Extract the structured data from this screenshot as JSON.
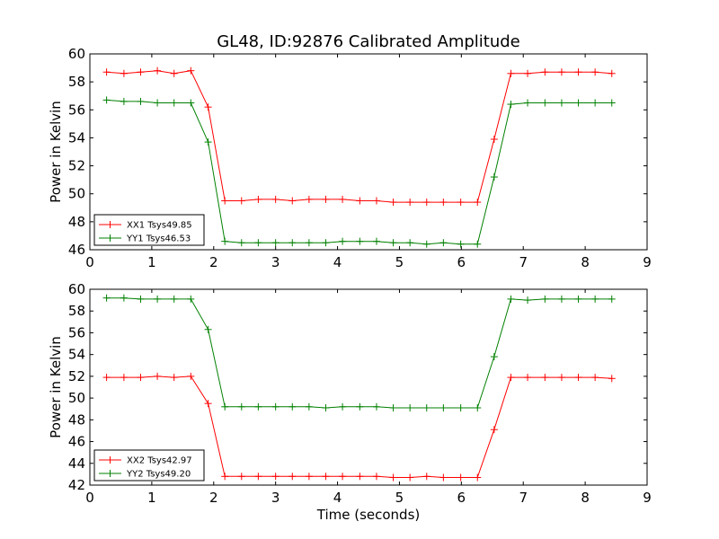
{
  "chart_data": [
    {
      "type": "line",
      "title": "GL48, ID:92876 Calibrated Amplitude",
      "xlabel": "",
      "ylabel": "Power in Kelvin",
      "xlim": [
        0,
        9
      ],
      "ylim": [
        46,
        60
      ],
      "xticks": [
        0,
        1,
        2,
        3,
        4,
        5,
        6,
        7,
        8,
        9
      ],
      "yticks": [
        46,
        48,
        50,
        52,
        54,
        56,
        58,
        60
      ],
      "grid": false,
      "legend_position": "lower-left",
      "x": [
        0.27,
        0.55,
        0.82,
        1.09,
        1.36,
        1.63,
        1.91,
        2.18,
        2.45,
        2.72,
        3.0,
        3.27,
        3.54,
        3.81,
        4.08,
        4.36,
        4.63,
        4.9,
        5.17,
        5.44,
        5.71,
        5.99,
        6.26,
        6.53,
        6.8,
        7.07,
        7.35,
        7.62,
        7.89,
        8.16,
        8.43
      ],
      "series": [
        {
          "name": "XX1 Tsys49.85",
          "color": "#ff0000",
          "values": [
            58.7,
            58.6,
            58.7,
            58.8,
            58.6,
            58.8,
            56.2,
            49.5,
            49.5,
            49.6,
            49.6,
            49.5,
            49.6,
            49.6,
            49.6,
            49.5,
            49.5,
            49.4,
            49.4,
            49.4,
            49.4,
            49.4,
            49.4,
            53.9,
            58.6,
            58.6,
            58.7,
            58.7,
            58.7,
            58.7,
            58.6
          ]
        },
        {
          "name": "YY1 Tsys46.53",
          "color": "#008000",
          "values": [
            56.7,
            56.6,
            56.6,
            56.5,
            56.5,
            56.5,
            53.7,
            46.6,
            46.5,
            46.5,
            46.5,
            46.5,
            46.5,
            46.5,
            46.6,
            46.6,
            46.6,
            46.5,
            46.5,
            46.4,
            46.5,
            46.4,
            46.4,
            51.2,
            56.4,
            56.5,
            56.5,
            56.5,
            56.5,
            56.5,
            56.5
          ]
        }
      ]
    },
    {
      "type": "line",
      "title": "",
      "xlabel": "Time (seconds)",
      "ylabel": "Power in Kelvin",
      "xlim": [
        0,
        9
      ],
      "ylim": [
        42,
        60
      ],
      "xticks": [
        0,
        1,
        2,
        3,
        4,
        5,
        6,
        7,
        8,
        9
      ],
      "yticks": [
        42,
        44,
        46,
        48,
        50,
        52,
        54,
        56,
        58,
        60
      ],
      "grid": false,
      "legend_position": "lower-left",
      "x": [
        0.27,
        0.55,
        0.82,
        1.09,
        1.36,
        1.63,
        1.91,
        2.18,
        2.45,
        2.72,
        3.0,
        3.27,
        3.54,
        3.81,
        4.08,
        4.36,
        4.63,
        4.9,
        5.17,
        5.44,
        5.71,
        5.99,
        6.26,
        6.53,
        6.8,
        7.07,
        7.35,
        7.62,
        7.89,
        8.16,
        8.43
      ],
      "series": [
        {
          "name": "XX2 Tsys42.97",
          "color": "#ff0000",
          "values": [
            51.9,
            51.9,
            51.9,
            52.0,
            51.9,
            52.0,
            49.5,
            42.8,
            42.8,
            42.8,
            42.8,
            42.8,
            42.8,
            42.8,
            42.8,
            42.8,
            42.8,
            42.7,
            42.7,
            42.8,
            42.7,
            42.7,
            42.7,
            47.1,
            51.9,
            51.9,
            51.9,
            51.9,
            51.9,
            51.9,
            51.8
          ]
        },
        {
          "name": "YY2 Tsys49.20",
          "color": "#008000",
          "values": [
            59.2,
            59.2,
            59.1,
            59.1,
            59.1,
            59.1,
            56.3,
            49.2,
            49.2,
            49.2,
            49.2,
            49.2,
            49.2,
            49.1,
            49.2,
            49.2,
            49.2,
            49.1,
            49.1,
            49.1,
            49.1,
            49.1,
            49.1,
            53.8,
            59.1,
            59.0,
            59.1,
            59.1,
            59.1,
            59.1,
            59.1
          ]
        }
      ]
    }
  ]
}
